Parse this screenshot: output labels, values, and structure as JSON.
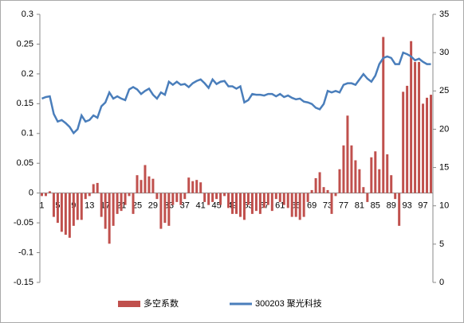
{
  "chart_data": {
    "type": "bar_line",
    "categories": [
      "1",
      null,
      null,
      null,
      "5",
      null,
      null,
      null,
      "9",
      null,
      null,
      null,
      "13",
      null,
      null,
      null,
      "17",
      null,
      null,
      null,
      "21",
      null,
      null,
      null,
      "25",
      null,
      null,
      null,
      "29",
      null,
      null,
      null,
      "33",
      null,
      null,
      null,
      "37",
      null,
      null,
      null,
      "41",
      null,
      null,
      null,
      "45",
      null,
      null,
      null,
      "49",
      null,
      null,
      null,
      "53",
      null,
      null,
      null,
      "57",
      null,
      null,
      null,
      "61",
      null,
      null,
      null,
      "65",
      null,
      null,
      null,
      "69",
      null,
      null,
      null,
      "73",
      null,
      null,
      null,
      "77",
      null,
      null,
      null,
      "81",
      null,
      null,
      null,
      "85",
      null,
      null,
      null,
      "89",
      null,
      null,
      null,
      "93",
      null,
      null,
      null,
      "97",
      null,
      null
    ],
    "series": [
      {
        "name": "多空系数",
        "color": "#c0504d",
        "values": [
          -0.005,
          -0.005,
          0.003,
          -0.04,
          -0.05,
          -0.065,
          -0.07,
          -0.075,
          -0.055,
          -0.045,
          -0.045,
          -0.01,
          -0.005,
          0.015,
          0.017,
          -0.04,
          -0.06,
          -0.085,
          -0.055,
          -0.035,
          -0.03,
          -0.02,
          -0.005,
          -0.035,
          0.03,
          0.022,
          0.047,
          0.028,
          0.024,
          -0.01,
          -0.06,
          -0.05,
          -0.055,
          -0.02,
          -0.015,
          -0.02,
          -0.01,
          0.026,
          0.02,
          0.022,
          0.018,
          -0.015,
          -0.02,
          -0.015,
          -0.01,
          -0.02,
          -0.005,
          -0.025,
          -0.035,
          -0.035,
          -0.04,
          -0.045,
          -0.02,
          -0.035,
          -0.03,
          -0.035,
          -0.025,
          -0.02,
          -0.03,
          -0.01,
          -0.015,
          -0.02,
          -0.025,
          -0.04,
          -0.04,
          -0.045,
          -0.04,
          -0.015,
          0.005,
          0.025,
          0.035,
          0.01,
          0.005,
          -0.035,
          -0.005,
          0.04,
          0.08,
          0.13,
          0.08,
          0.055,
          0.04,
          0.01,
          -0.015,
          0.06,
          0.07,
          0.04,
          0.262,
          0.065,
          0.03,
          -0.01,
          -0.055,
          0.17,
          0.18,
          0.255,
          0.22,
          0.22,
          0.15,
          0.16,
          0.165
        ]
      },
      {
        "name": "300203 聚光科技",
        "color": "#4a7ebb",
        "axis": "y2",
        "values": [
          24,
          24.2,
          24.3,
          22,
          21,
          21.2,
          20.8,
          20.3,
          19.5,
          20,
          21.8,
          21,
          21.2,
          21.8,
          21.5,
          23,
          23.5,
          24.8,
          24,
          24.3,
          24,
          23.8,
          25.2,
          25.5,
          25.2,
          24.6,
          25,
          25.3,
          24.5,
          24,
          24.8,
          24.5,
          26.2,
          25.8,
          26.2,
          25.8,
          25.9,
          25.5,
          26,
          26.3,
          26.5,
          26,
          25.4,
          26.5,
          25.9,
          26.2,
          26.3,
          25.6,
          25.6,
          25.3,
          25.6,
          23.5,
          23.8,
          24.6,
          24.5,
          24.5,
          24.4,
          24.6,
          24.6,
          24.3,
          24.6,
          24.2,
          24.4,
          24.1,
          23.9,
          24,
          23.6,
          23.5,
          23.3,
          22.8,
          22.6,
          23.3,
          25,
          24.8,
          25,
          24.8,
          25.8,
          26,
          26,
          25.8,
          26.5,
          27.2,
          26.6,
          26.2,
          27,
          28.5,
          29.3,
          29.5,
          29.3,
          28.5,
          28.5,
          30,
          29.8,
          29.5,
          29,
          29.2,
          28.8,
          28.5,
          28.5
        ]
      }
    ],
    "ylim": [
      -0.15,
      0.3
    ],
    "yticks": [
      -0.15,
      -0.1,
      -0.05,
      0,
      0.05,
      0.1,
      0.15,
      0.2,
      0.25,
      0.3
    ],
    "y2lim": [
      0,
      35
    ],
    "y2ticks": [
      0,
      5,
      10,
      15,
      20,
      25,
      30,
      35
    ],
    "legend": "bottom"
  }
}
